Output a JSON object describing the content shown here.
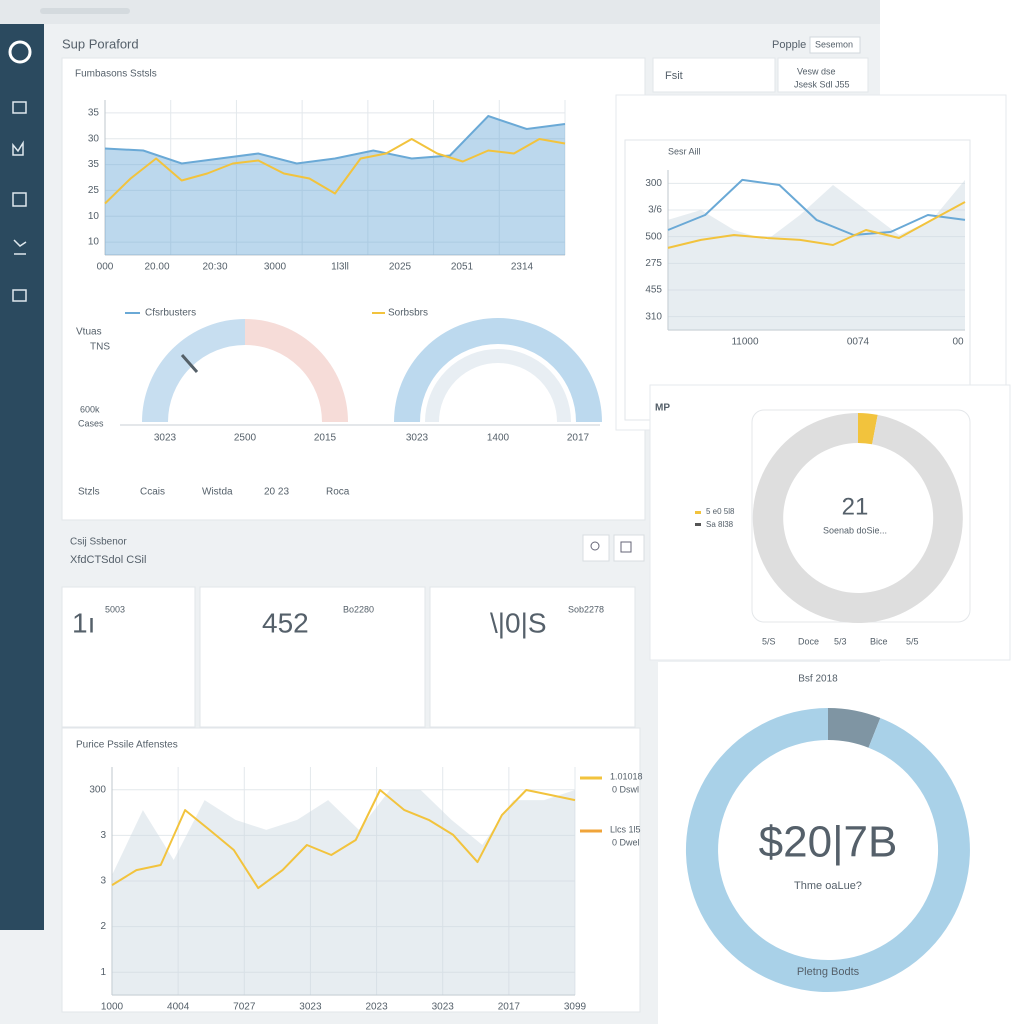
{
  "header": {
    "title": "Sup Poraford",
    "user": "Popple",
    "select": "Sesemon"
  },
  "panel_top": {
    "title": "Fumbasons Sstsls",
    "chart": {
      "ylim": [
        6,
        37
      ],
      "y_labels": [
        "35",
        "30",
        "35",
        "25",
        "10",
        "10"
      ],
      "x_labels": [
        "000",
        "20.00",
        "20:30",
        "3000",
        "1l3ll",
        "2025",
        "2051",
        "2314"
      ],
      "series": [
        {
          "name": "Cfsrbusters",
          "color": "#6aa9d6",
          "area": true,
          "values": [
            27.3,
            26.9,
            24.3,
            25.3,
            26.3,
            24.3,
            25.3,
            26.9,
            25.3,
            25.9,
            33.8,
            31.2,
            32.2
          ]
        },
        {
          "name": "Sorbsbrs",
          "color": "#f2c33d",
          "values": [
            16.3,
            21.3,
            25.3,
            20.9,
            22.3,
            24.3,
            24.9,
            22.3,
            21.3,
            18.3,
            25.3,
            26.3,
            29.2,
            26.3,
            24.7,
            26.9,
            26.3,
            29.2,
            28.3
          ]
        }
      ]
    },
    "gauges": {
      "labels": [
        "Vtuas",
        "TNS",
        "600k",
        "Cases"
      ],
      "left_x": [
        "3023",
        "2500",
        "2015"
      ],
      "right_x": [
        "3023",
        "1400",
        "2017"
      ]
    },
    "footer": [
      "Stzls",
      "Ccais",
      "Wistda",
      "20 23",
      "Roca"
    ]
  },
  "panel_right": {
    "card_title": "Fsit",
    "card_lines": [
      "Vesw dse",
      "Jsesk Sdl J55"
    ],
    "chart": {
      "title": "Sesr Aill",
      "ylim": [
        0,
        100
      ],
      "y_labels": [
        "300",
        "3/6",
        "500",
        "275",
        "455",
        "310"
      ],
      "x_labels": [
        "11000",
        "0074",
        "00"
      ],
      "series": [
        {
          "color": "#c9d6e0",
          "area": true,
          "values": [
            68.8,
            75,
            62.5,
            56.3,
            71.9,
            90.6,
            75,
            59.4,
            68.8,
            93.8
          ]
        },
        {
          "color": "#6aa9d6",
          "values": [
            62.5,
            71.9,
            93.8,
            90.6,
            68.8,
            59.4,
            61.3,
            71.9,
            68.8
          ]
        },
        {
          "color": "#f2c33d",
          "values": [
            51.3,
            56.3,
            59.4,
            57.5,
            56.3,
            53.1,
            62.5,
            57.5,
            68.8,
            80
          ]
        }
      ]
    }
  },
  "donut_small": {
    "title": "MP",
    "values": [
      3,
      97
    ],
    "colors": [
      "#f2c33d",
      "#dedede"
    ],
    "center": "21",
    "caption": "Soenab doSie...",
    "legend": [
      "5 e0 5l8",
      "Sa 8l38"
    ],
    "footer": [
      "5/S",
      "Doce",
      "5/3",
      "Bice",
      "5/5"
    ]
  },
  "donut_big": {
    "title": "Bsf 2018",
    "values": [
      6,
      94
    ],
    "colors": [
      "#7f95a3",
      "#a9d1e8"
    ],
    "center": "$20|7B",
    "caption": "Thme oaLue?",
    "footer": "Pletng Bodts"
  },
  "kpis": {
    "title": "Csij Ssbenor",
    "subtitle": "XfdCTSdol CSil",
    "cards": [
      {
        "value": "1ı",
        "label": "5003"
      },
      {
        "value": "452",
        "label": "Bo2280"
      },
      {
        "value": "\\|0|S",
        "label": "Sob2278"
      }
    ]
  },
  "panel_bottom": {
    "title": "Purice Pssile Atfenstes",
    "chart": {
      "ylim": [
        0,
        100
      ],
      "y_labels": [
        "300",
        "3",
        "3",
        "2",
        "1"
      ],
      "x_labels": [
        "1000",
        "4004",
        "7027",
        "3023",
        "2023",
        "3023",
        "2017",
        "3099"
      ],
      "series": [
        {
          "color": "#c9d6e0",
          "area": true,
          "values": [
            52.6,
            81.1,
            59.2,
            85.5,
            76.8,
            72.4,
            76.8,
            85.5,
            72.4,
            89.9,
            89.9,
            76.8,
            65.8,
            85.5,
            85.5,
            89.9
          ]
        },
        {
          "color": "#f2c33d",
          "values": [
            48.2,
            54.8,
            57,
            81.1,
            72.4,
            63.6,
            46.9,
            54.8,
            65.8,
            61.4,
            68,
            89.9,
            81.1,
            76.8,
            70.2,
            58.3,
            78.9,
            89.9,
            87.7,
            85.5
          ]
        }
      ]
    },
    "legend": [
      "1.01018",
      "0 Dswl",
      "Llcs 1l5",
      "0 Dwel"
    ]
  }
}
